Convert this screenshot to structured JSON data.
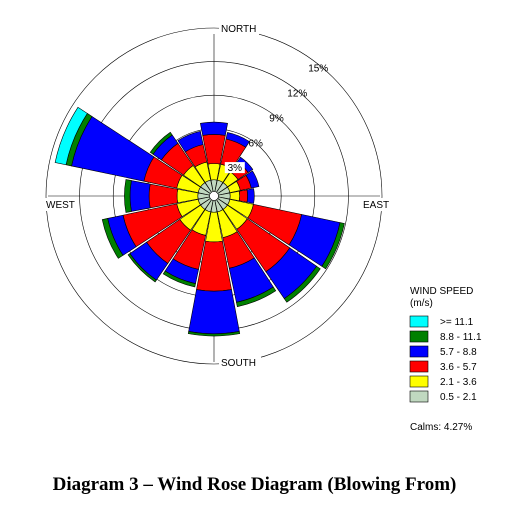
{
  "chart_data": {
    "type": "wind-rose",
    "caption": "Diagram 3 – Wind Rose Diagram (Blowing From)",
    "directions": {
      "north": "NORTH",
      "east": "EAST",
      "south": "SOUTH",
      "west": "WEST"
    },
    "rings": [
      {
        "value": 3,
        "label": "3%"
      },
      {
        "value": 6,
        "label": "6%"
      },
      {
        "value": 9,
        "label": "9%"
      },
      {
        "value": 12,
        "label": "12%"
      },
      {
        "value": 15,
        "label": "15%"
      }
    ],
    "max_percent": 15,
    "legend": {
      "title": "WIND SPEED",
      "units": "(m/s)",
      "placement": "right",
      "calms": "Calms: 4.27%"
    },
    "speed_classes": [
      {
        "label": "0.5 -  2.1",
        "color": "#c0d8c0"
      },
      {
        "label": "2.1 -  3.6",
        "color": "#ffff00"
      },
      {
        "label": "3.6 -  5.7",
        "color": "#ff0000"
      },
      {
        "label": "5.7 -  8.8",
        "color": "#0000ff"
      },
      {
        "label": "8.8 - 11.1",
        "color": "#008000"
      },
      {
        "label": ">= 11.1",
        "color": "#00ffff"
      }
    ],
    "sectors": [
      {
        "dir": 0,
        "cumulative": [
          1.45,
          2.9,
          5.5,
          6.6,
          6.6,
          6.6
        ]
      },
      {
        "dir": 22.5,
        "cumulative": [
          1.45,
          2.9,
          5.2,
          5.8,
          5.8,
          5.8
        ]
      },
      {
        "dir": 45,
        "cumulative": [
          1.45,
          2.6,
          3.7,
          4.2,
          4.2,
          4.2
        ]
      },
      {
        "dir": 67.5,
        "cumulative": [
          1.45,
          2.4,
          3.4,
          4.1,
          4.1,
          4.1
        ]
      },
      {
        "dir": 90,
        "cumulative": [
          1.45,
          2.3,
          3.0,
          3.6,
          3.6,
          3.6
        ]
      },
      {
        "dir": 112.5,
        "cumulative": [
          1.45,
          3.6,
          8.0,
          11.5,
          11.9,
          11.9
        ]
      },
      {
        "dir": 135,
        "cumulative": [
          1.45,
          3.6,
          8.2,
          11.1,
          11.5,
          11.5
        ]
      },
      {
        "dir": 157.5,
        "cumulative": [
          1.45,
          3.8,
          6.6,
          9.7,
          10.1,
          10.1
        ]
      },
      {
        "dir": 180,
        "cumulative": [
          1.45,
          4.1,
          8.5,
          12.3,
          12.5,
          12.5
        ]
      },
      {
        "dir": 202.5,
        "cumulative": [
          1.45,
          3.6,
          6.7,
          8.0,
          8.3,
          8.3
        ]
      },
      {
        "dir": 225,
        "cumulative": [
          1.45,
          3.7,
          7.3,
          9.1,
          9.3,
          9.3
        ]
      },
      {
        "dir": 247.5,
        "cumulative": [
          1.45,
          3.4,
          8.3,
          9.7,
          10.2,
          10.2
        ]
      },
      {
        "dir": 270,
        "cumulative": [
          1.45,
          3.3,
          5.8,
          7.5,
          8.0,
          8.0
        ]
      },
      {
        "dir": 292.5,
        "cumulative": [
          1.45,
          3.4,
          6.4,
          13.0,
          13.5,
          14.5
        ]
      },
      {
        "dir": 315,
        "cumulative": [
          1.45,
          3.3,
          5.7,
          6.6,
          6.9,
          6.9
        ]
      },
      {
        "dir": 337.5,
        "cumulative": [
          1.45,
          3.1,
          4.7,
          5.9,
          5.9,
          5.9
        ]
      }
    ]
  }
}
